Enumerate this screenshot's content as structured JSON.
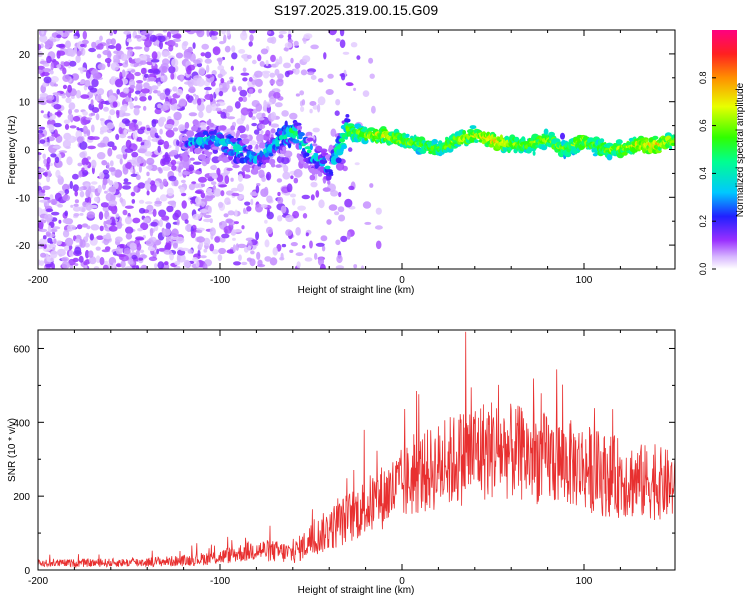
{
  "title": "S197.2025.319.00.15.G09",
  "chart_data": [
    {
      "type": "heatmap",
      "xlabel": "Height of straight line (km)",
      "ylabel": "Frequency (Hz)",
      "xlim": [
        -200,
        150
      ],
      "ylim": [
        -25,
        25
      ],
      "x_ticks": [
        -200,
        -100,
        0,
        100
      ],
      "y_ticks": [
        -20,
        -10,
        0,
        10,
        20
      ],
      "colorbar": {
        "label": "Normalized spectral amplitude",
        "range": [
          0,
          1
        ],
        "ticks": [
          0.0,
          0.2,
          0.4,
          0.6,
          0.8
        ]
      },
      "signal_trace": {
        "x": [
          -120,
          -110,
          -100,
          -90,
          -80,
          -70,
          -60,
          -50,
          -40,
          -30,
          -20,
          -10,
          0,
          10,
          20,
          30,
          40,
          50,
          60,
          70,
          80,
          90,
          100,
          110,
          120,
          130,
          140,
          150
        ],
        "y": [
          1,
          2,
          2,
          0,
          -2,
          1,
          4,
          -1,
          -4,
          4,
          3,
          3,
          2,
          1,
          0,
          2,
          3,
          2,
          1,
          1,
          2,
          0,
          2,
          0,
          0,
          1,
          1,
          2
        ],
        "amplitude": [
          0.25,
          0.35,
          0.35,
          0.4,
          0.3,
          0.35,
          0.45,
          0.4,
          0.3,
          0.55,
          0.6,
          0.65,
          0.6,
          0.55,
          0.55,
          0.6,
          0.65,
          0.7,
          0.6,
          0.55,
          0.6,
          0.55,
          0.6,
          0.55,
          0.6,
          0.65,
          0.7,
          0.6
        ]
      }
    },
    {
      "type": "line",
      "xlabel": "Height of straight line (km)",
      "ylabel": "SNR (10 * v/v)",
      "xlim": [
        -200,
        150
      ],
      "ylim": [
        0,
        650
      ],
      "x_ticks": [
        -200,
        -100,
        0,
        100
      ],
      "y_ticks": [
        0,
        200,
        400,
        600
      ],
      "color": "#e83030",
      "envelope": {
        "x": [
          -200,
          -150,
          -120,
          -100,
          -90,
          -80,
          -70,
          -60,
          -50,
          -40,
          -30,
          -20,
          -10,
          0,
          10,
          20,
          30,
          40,
          50,
          60,
          70,
          80,
          90,
          100,
          110,
          120,
          130,
          140,
          150
        ],
        "mean": [
          18,
          20,
          25,
          35,
          45,
          55,
          50,
          45,
          80,
          110,
          140,
          170,
          200,
          230,
          260,
          280,
          300,
          320,
          330,
          320,
          310,
          300,
          290,
          280,
          260,
          250,
          240,
          235,
          230
        ],
        "spread": [
          10,
          12,
          15,
          20,
          25,
          30,
          30,
          30,
          45,
          60,
          70,
          80,
          90,
          100,
          110,
          120,
          130,
          140,
          140,
          130,
          130,
          125,
          120,
          120,
          115,
          110,
          105,
          100,
          95
        ],
        "peak": {
          "x": 35,
          "y": 645
        }
      }
    }
  ]
}
